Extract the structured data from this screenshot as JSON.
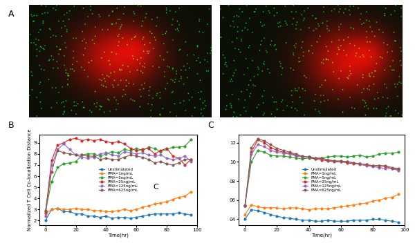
{
  "image_panel": {
    "panel_label": "A",
    "images": 2
  },
  "chart_data": [
    {
      "type": "line",
      "panel_label": "B",
      "x_label": "Time(hr)",
      "y_label": "Normalized T Cell Co-localization Distance",
      "annotations": [
        "C"
      ],
      "marker": "o",
      "legend": "center",
      "xlim": [
        -4,
        100
      ],
      "xticks": [
        0,
        20,
        40,
        60,
        80,
        100
      ],
      "ylim": [
        1.6,
        9.7
      ],
      "yticks": [
        2,
        3,
        4,
        5,
        6,
        7,
        8,
        9
      ],
      "x": [
        0,
        4,
        8,
        12,
        16,
        20,
        24,
        28,
        32,
        36,
        40,
        44,
        48,
        52,
        56,
        60,
        64,
        68,
        72,
        76,
        80,
        84,
        88,
        92,
        96
      ],
      "series": [
        {
          "name": "Unstimulated",
          "color": "#1f77b4",
          "values": [
            2.0,
            3.0,
            3.1,
            2.8,
            2.8,
            2.6,
            2.6,
            2.4,
            2.4,
            2.3,
            2.4,
            2.2,
            2.3,
            2.3,
            2.2,
            2.3,
            2.4,
            2.5,
            2.6,
            2.6,
            2.6,
            2.6,
            2.7,
            2.6,
            2.5
          ]
        },
        {
          "name": "PMA=1ng/mL",
          "color": "#ff7f0e",
          "values": [
            2.6,
            3.0,
            3.1,
            3.0,
            3.0,
            3.1,
            3.0,
            3.0,
            2.9,
            2.9,
            2.8,
            2.8,
            2.9,
            3.0,
            2.9,
            3.0,
            3.2,
            3.3,
            3.5,
            3.6,
            3.7,
            3.9,
            4.1,
            4.2,
            4.6
          ]
        },
        {
          "name": "PMA=5ng/mL",
          "color": "#2ca02c",
          "values": [
            2.8,
            5.5,
            6.8,
            7.1,
            7.2,
            7.3,
            7.9,
            8.0,
            8.0,
            7.8,
            8.0,
            8.2,
            8.1,
            8.4,
            8.3,
            8.5,
            8.3,
            8.6,
            8.5,
            8.2,
            8.4,
            8.6,
            8.6,
            8.7,
            9.3
          ]
        },
        {
          "name": "PMA=25ng/mL",
          "color": "#d62728",
          "values": [
            2.7,
            7.4,
            8.8,
            9.0,
            9.3,
            9.4,
            9.2,
            9.3,
            9.2,
            9.3,
            9.1,
            9.0,
            9.1,
            8.9,
            8.5,
            8.3,
            8.4,
            8.5,
            8.0,
            8.3,
            8.5,
            7.8,
            7.6,
            7.0,
            7.5
          ]
        },
        {
          "name": "PMA=125ng/mL",
          "color": "#9467bd",
          "values": [
            2.4,
            7.0,
            8.4,
            8.9,
            8.4,
            7.9,
            7.7,
            7.6,
            7.7,
            8.0,
            8.1,
            7.9,
            7.8,
            8.2,
            8.1,
            8.0,
            8.1,
            7.9,
            7.8,
            7.9,
            7.6,
            7.5,
            7.6,
            7.8,
            7.3
          ]
        },
        {
          "name": "PMA=625ng/mL",
          "color": "#8c564b",
          "values": [
            2.9,
            6.4,
            8.3,
            8.1,
            8.0,
            7.9,
            7.9,
            7.8,
            7.8,
            7.5,
            7.6,
            7.5,
            7.5,
            7.7,
            7.9,
            7.8,
            7.7,
            7.5,
            7.2,
            7.3,
            7.1,
            7.0,
            7.2,
            7.5,
            7.5
          ]
        }
      ]
    },
    {
      "type": "line",
      "panel_label": "C",
      "x_label": "Time(hr)",
      "marker": "o",
      "legend": "center",
      "xlim": [
        -4,
        100
      ],
      "xticks": [
        0,
        20,
        40,
        60,
        80,
        100
      ],
      "ylim": [
        3.4,
        12.8
      ],
      "yticks": [
        {
          "value": 4,
          "label": "04"
        },
        {
          "value": 6,
          "label": "06"
        },
        {
          "value": 8,
          "label": "08"
        },
        10,
        12
      ],
      "x": [
        0,
        4,
        8,
        12,
        16,
        20,
        24,
        28,
        32,
        36,
        40,
        44,
        48,
        52,
        56,
        60,
        64,
        68,
        72,
        76,
        80,
        84,
        88,
        92,
        96
      ],
      "series": [
        {
          "name": "Unstimulated",
          "color": "#1f77b4",
          "values": [
            4.0,
            5.0,
            4.9,
            4.7,
            4.5,
            4.3,
            4.2,
            4.1,
            4.0,
            3.9,
            3.9,
            3.8,
            3.8,
            3.9,
            3.8,
            3.8,
            3.8,
            3.9,
            3.9,
            3.9,
            4.0,
            4.0,
            3.9,
            3.8,
            3.7
          ]
        },
        {
          "name": "PMA=1ng/mL",
          "color": "#ff7f0e",
          "values": [
            4.5,
            5.5,
            5.3,
            5.2,
            5.2,
            5.2,
            5.1,
            5.2,
            5.2,
            5.1,
            5.0,
            5.1,
            5.1,
            5.1,
            5.2,
            5.3,
            5.4,
            5.5,
            5.6,
            5.7,
            5.9,
            6.0,
            6.2,
            6.3,
            6.6
          ]
        },
        {
          "name": "PMA=5ng/mL",
          "color": "#2ca02c",
          "values": [
            5.5,
            10.0,
            11.2,
            11.0,
            10.7,
            10.6,
            10.6,
            10.5,
            10.4,
            10.3,
            10.4,
            10.3,
            10.4,
            10.5,
            10.6,
            10.6,
            10.5,
            10.6,
            10.7,
            10.5,
            10.6,
            10.8,
            10.9,
            10.9,
            11.0
          ]
        },
        {
          "name": "PMA=25ng/mL",
          "color": "#d62728",
          "values": [
            5.4,
            11.0,
            12.3,
            12.0,
            11.5,
            11.2,
            11.0,
            10.9,
            10.7,
            10.5,
            10.5,
            10.3,
            10.2,
            10.1,
            10.0,
            10.0,
            9.9,
            9.8,
            9.8,
            9.7,
            9.6,
            9.6,
            9.5,
            9.3,
            9.2
          ]
        },
        {
          "name": "PMA=125ng/mL",
          "color": "#9467bd",
          "values": [
            5.4,
            10.8,
            11.8,
            11.6,
            11.2,
            11.0,
            10.9,
            10.8,
            10.6,
            10.5,
            10.5,
            10.4,
            10.3,
            10.2,
            10.1,
            10.0,
            10.0,
            9.9,
            9.7,
            9.6,
            9.5,
            9.4,
            9.3,
            9.3,
            9.1
          ]
        },
        {
          "name": "PMA=625ng/mL",
          "color": "#8c564b",
          "values": [
            5.4,
            11.5,
            12.4,
            12.2,
            11.8,
            11.4,
            11.2,
            11.0,
            10.8,
            10.6,
            10.5,
            10.4,
            10.4,
            10.2,
            10.1,
            10.1,
            10.0,
            9.9,
            9.8,
            9.7,
            9.6,
            9.6,
            9.6,
            9.4,
            9.3
          ]
        }
      ]
    }
  ]
}
